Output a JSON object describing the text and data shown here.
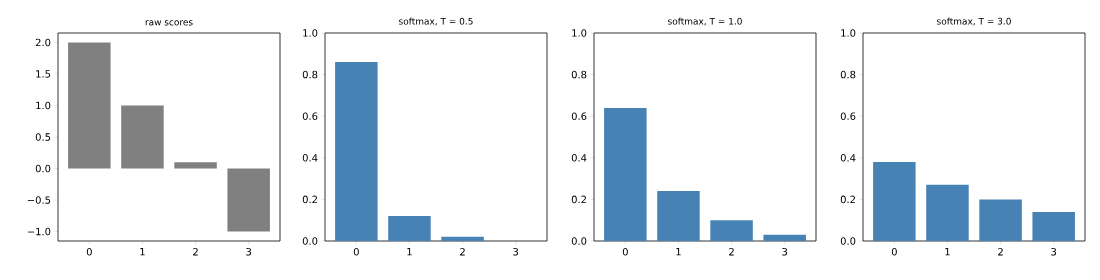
{
  "chart_data": [
    {
      "type": "bar",
      "title": "raw scores",
      "categories": [
        "0",
        "1",
        "2",
        "3"
      ],
      "values": [
        2.0,
        1.0,
        0.1,
        -1.0
      ],
      "color": "#808080",
      "ylim": [
        -1.15,
        2.15
      ],
      "yticks": [
        {
          "value": -1.0,
          "label": "−1.0"
        },
        {
          "value": -0.5,
          "label": "−0.5"
        },
        {
          "value": 0.0,
          "label": "0.0"
        },
        {
          "value": 0.5,
          "label": "0.5"
        },
        {
          "value": 1.0,
          "label": "1.0"
        },
        {
          "value": 1.5,
          "label": "1.5"
        },
        {
          "value": 2.0,
          "label": "2.0"
        }
      ]
    },
    {
      "type": "bar",
      "title": "softmax, T = 0.5",
      "categories": [
        "0",
        "1",
        "2",
        "3"
      ],
      "values": [
        0.86,
        0.12,
        0.02,
        0.0
      ],
      "color": "#4682b4",
      "ylim": [
        0,
        1
      ],
      "yticks": [
        {
          "value": 0.0,
          "label": "0.0"
        },
        {
          "value": 0.2,
          "label": "0.2"
        },
        {
          "value": 0.4,
          "label": "0.4"
        },
        {
          "value": 0.6,
          "label": "0.6"
        },
        {
          "value": 0.8,
          "label": "0.8"
        },
        {
          "value": 1.0,
          "label": "1.0"
        }
      ]
    },
    {
      "type": "bar",
      "title": "softmax, T = 1.0",
      "categories": [
        "0",
        "1",
        "2",
        "3"
      ],
      "values": [
        0.64,
        0.24,
        0.1,
        0.03
      ],
      "color": "#4682b4",
      "ylim": [
        0,
        1
      ],
      "yticks": [
        {
          "value": 0.0,
          "label": "0.0"
        },
        {
          "value": 0.2,
          "label": "0.2"
        },
        {
          "value": 0.4,
          "label": "0.4"
        },
        {
          "value": 0.6,
          "label": "0.6"
        },
        {
          "value": 0.8,
          "label": "0.8"
        },
        {
          "value": 1.0,
          "label": "1.0"
        }
      ]
    },
    {
      "type": "bar",
      "title": "softmax, T = 3.0",
      "categories": [
        "0",
        "1",
        "2",
        "3"
      ],
      "values": [
        0.38,
        0.27,
        0.2,
        0.14
      ],
      "color": "#4682b4",
      "ylim": [
        0,
        1
      ],
      "yticks": [
        {
          "value": 0.0,
          "label": "0.0"
        },
        {
          "value": 0.2,
          "label": "0.2"
        },
        {
          "value": 0.4,
          "label": "0.4"
        },
        {
          "value": 0.6,
          "label": "0.6"
        },
        {
          "value": 0.8,
          "label": "0.8"
        },
        {
          "value": 1.0,
          "label": "1.0"
        }
      ]
    }
  ]
}
